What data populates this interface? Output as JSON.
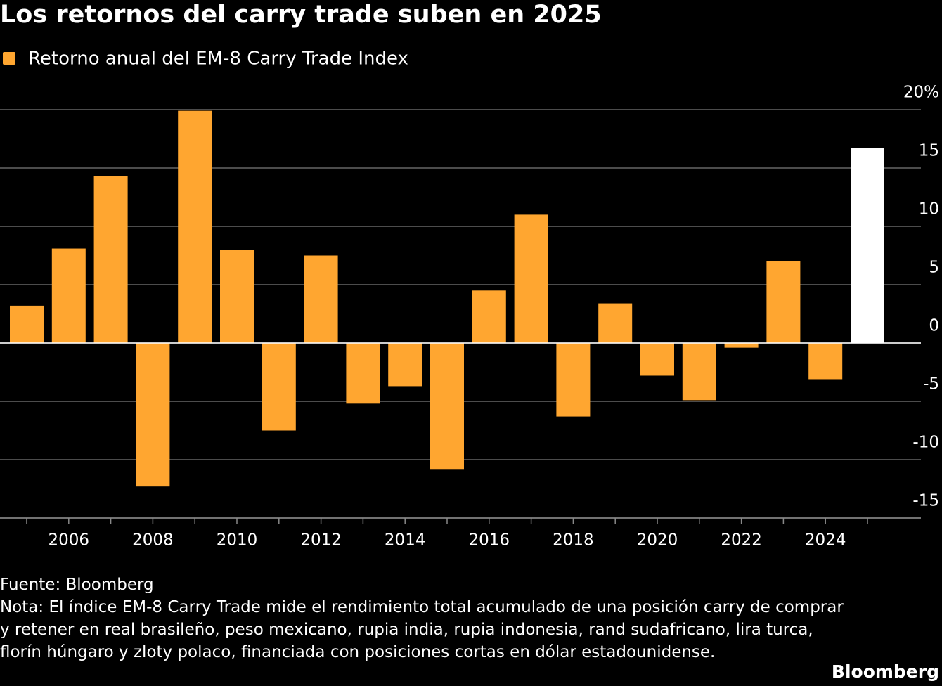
{
  "chart_data": {
    "type": "bar",
    "title": "Los retornos del carry trade suben en 2025",
    "categories": [
      null,
      "2006",
      null,
      "2008",
      null,
      "2010",
      null,
      "2012",
      null,
      "2014",
      null,
      "2016",
      null,
      "2018",
      null,
      "2020",
      null,
      "2022",
      null,
      "2024",
      null
    ],
    "series": [
      {
        "name": "Retorno anual del EM-8 Carry Trade Index",
        "color": "#ffa630",
        "values": [
          3.2,
          8.1,
          14.3,
          -12.3,
          19.9,
          8.0,
          -7.5,
          7.5,
          -5.2,
          -3.7,
          -10.8,
          4.5,
          11.0,
          -6.3,
          3.4,
          -2.8,
          -4.9,
          -0.4,
          7.0,
          -3.1,
          16.7
        ],
        "colors": [
          "#ffa630",
          "#ffa630",
          "#ffa630",
          "#ffa630",
          "#ffa630",
          "#ffa630",
          "#ffa630",
          "#ffa630",
          "#ffa630",
          "#ffa630",
          "#ffa630",
          "#ffa630",
          "#ffa630",
          "#ffa630",
          "#ffa630",
          "#ffa630",
          "#ffa630",
          "#ffa630",
          "#ffa630",
          "#ffa630",
          "#ffffff"
        ]
      }
    ],
    "ylim": [
      -15,
      20
    ],
    "yticks": [
      -15,
      -10,
      -5,
      0,
      5,
      10,
      15,
      {
        "value": 20,
        "label": "20%"
      }
    ],
    "grid": true,
    "source": "Fuente: Bloomberg",
    "note": "Nota: El índice EM-8 Carry Trade mide el rendimiento total acumulado de una posición carry de comprar y retener en real brasileño, peso mexicano, rupia india, rupia indonesia, rand sudafricano, lira turca, florín húngaro y zloty polaco, financiada con posiciones cortas en dólar estadounidense.",
    "brand": "Bloomberg"
  }
}
